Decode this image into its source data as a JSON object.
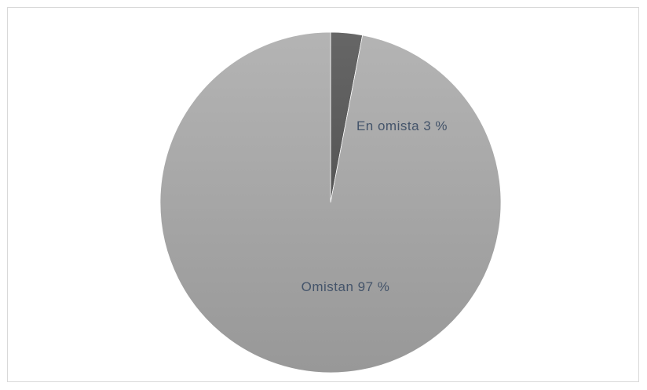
{
  "chart_data": {
    "type": "pie",
    "slices": [
      {
        "label": "En omista",
        "value": 3,
        "label_text": "En omista 3 %",
        "color": "#5f5f5f"
      },
      {
        "label": "Omistan",
        "value": 97,
        "label_text": "Omistan 97 %",
        "color": "#a6a6a6"
      }
    ],
    "start_angle_deg": 0,
    "direction": "clockwise",
    "legend": "none",
    "title": ""
  }
}
